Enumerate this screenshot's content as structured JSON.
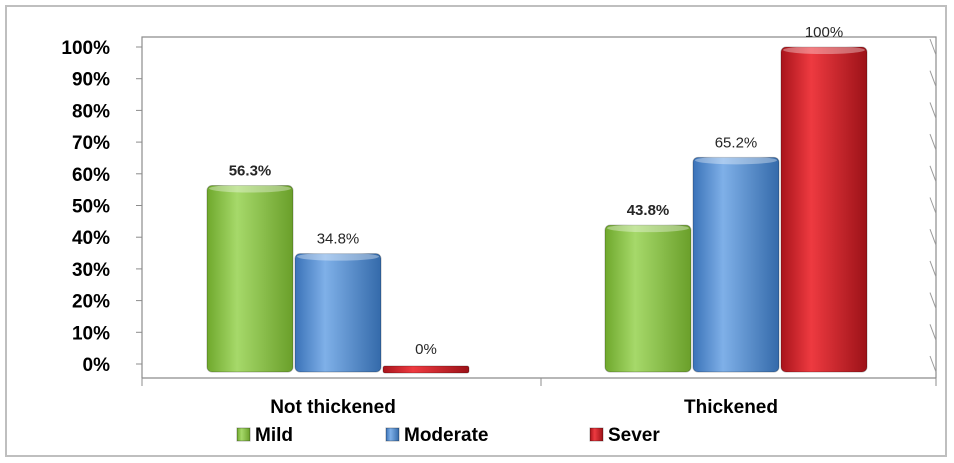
{
  "chart_data": {
    "type": "bar",
    "categories": [
      "Not thickened",
      "Thickened"
    ],
    "series": [
      {
        "name": "Mild",
        "values": [
          56.3,
          43.8
        ],
        "labels": [
          "56.3%",
          "43.8%"
        ],
        "color": "#8cc63f"
      },
      {
        "name": "Moderate",
        "values": [
          34.8,
          65.2
        ],
        "labels": [
          "34.8%",
          "65.2%"
        ],
        "color": "#4f8fd6"
      },
      {
        "name": "Sever",
        "values": [
          0,
          100
        ],
        "labels": [
          "0%",
          "100%"
        ],
        "color": "#d2232a"
      }
    ],
    "yticks": [
      "0%",
      "10%",
      "20%",
      "30%",
      "40%",
      "50%",
      "60%",
      "70%",
      "80%",
      "90%",
      "100%"
    ],
    "ylim": [
      0,
      100
    ],
    "grid": false,
    "legend": "bottom"
  }
}
